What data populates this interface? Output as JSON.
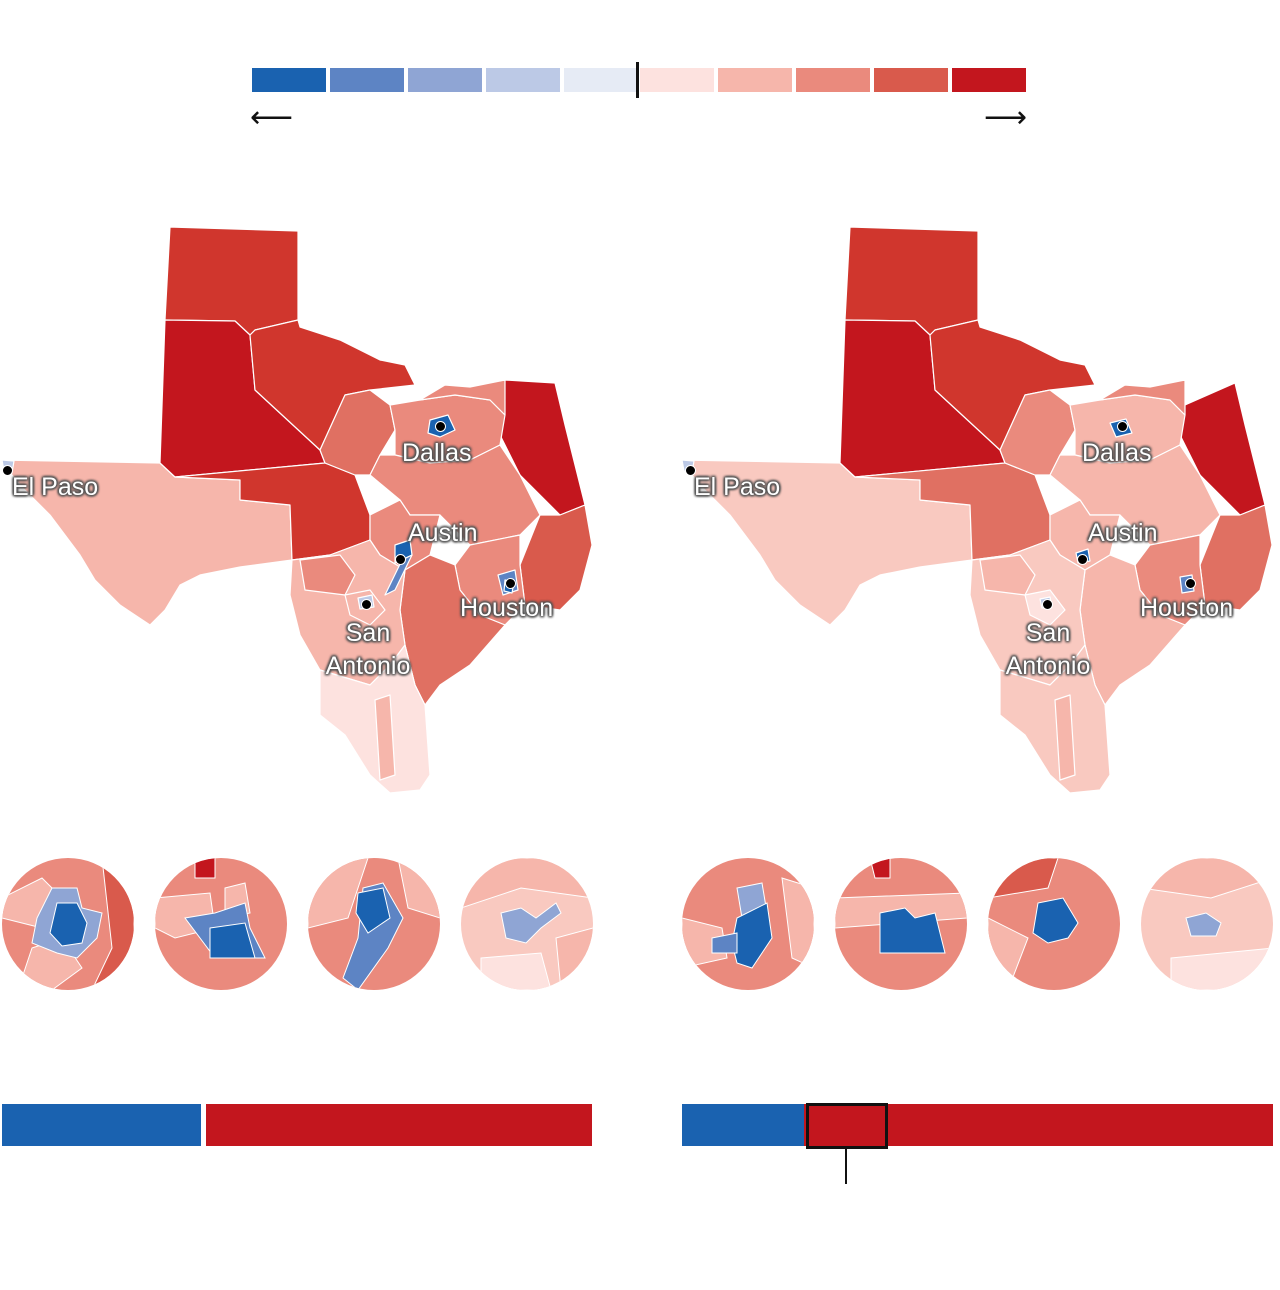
{
  "legend": {
    "colors": [
      "#1a62b0",
      "#5d84c4",
      "#8fa5d4",
      "#bcc9e6",
      "#e6ebf5",
      "#fde2df",
      "#f6b6ab",
      "#ea8a7d",
      "#d95a4c",
      "#c3161e"
    ],
    "left_arrow": "⟵",
    "right_arrow": "⟶"
  },
  "cities": {
    "el_paso": "El Paso",
    "dallas": "Dallas",
    "austin": "Austin",
    "houston": "Houston",
    "san_antonio": "San Antonio"
  },
  "seat_bars": {
    "left": {
      "dem_seats_share": 0.34,
      "rep_seats_share": 0.66,
      "dem_color": "#1a62b0",
      "rep_color": "#c3161e"
    },
    "right": {
      "dem_seats_share": 0.2,
      "rep_seats_share": 0.8,
      "dem_color": "#1a62b0",
      "rep_color": "#c3161e"
    }
  }
}
